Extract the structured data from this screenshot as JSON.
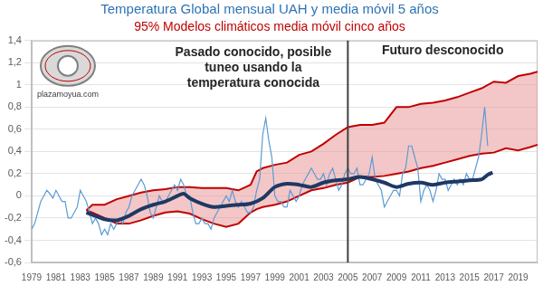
{
  "chart_data": {
    "type": "line",
    "title": "Temperatura Global mensual UAH y media móvil 5 años",
    "subtitle": "95% Modelos climáticos media móvil cinco años",
    "annotations": [
      "Pasado conocido, posible tuneo usando la temperatura conocida",
      "Futuro desconocido"
    ],
    "divider_x": 2005,
    "source": "plazamoyua.com",
    "xlim": [
      1979,
      2020.6
    ],
    "xticks": [
      1979,
      1981,
      1983,
      1985,
      1987,
      1989,
      1991,
      1993,
      1995,
      1997,
      1999,
      2001,
      2003,
      2005,
      2007,
      2009,
      2011,
      2013,
      2015,
      2017,
      2019
    ],
    "ylim": [
      -0.6,
      1.4
    ],
    "yticks": [
      {
        "value": -0.6,
        "label": "-0,6"
      },
      {
        "value": -0.4,
        "label": "-0,4"
      },
      {
        "value": -0.2,
        "label": "-0,2"
      },
      0,
      {
        "value": 0.2,
        "label": "0,2"
      },
      {
        "value": 0.4,
        "label": "0,4"
      },
      {
        "value": 0.6,
        "label": "0,6"
      },
      {
        "value": 0.8,
        "label": "0,8"
      },
      1,
      {
        "value": 1.2,
        "label": "1,2"
      },
      {
        "value": 1.4,
        "label": "1,4"
      }
    ],
    "grid": true,
    "series": [
      {
        "type": "band",
        "color": "#c00000",
        "x": [
          1983.5,
          1984,
          1985,
          1986,
          1987,
          1988,
          1989,
          1990,
          1991,
          1992,
          1993,
          1994,
          1995,
          1996,
          1997,
          1997.5,
          1998,
          1999,
          2000,
          2001,
          2002,
          2003,
          2004,
          2005,
          2006,
          2007,
          2008,
          2009,
          2010,
          2011,
          2012,
          2013,
          2014,
          2015,
          2016,
          2017,
          2018,
          2019,
          2020,
          2020.6
        ],
        "upper": [
          -0.13,
          -0.08,
          -0.08,
          -0.03,
          0.0,
          0.03,
          0.05,
          0.06,
          0.08,
          0.08,
          0.07,
          0.07,
          0.07,
          0.05,
          0.1,
          0.22,
          0.25,
          0.28,
          0.3,
          0.37,
          0.4,
          0.47,
          0.55,
          0.62,
          0.64,
          0.64,
          0.66,
          0.8,
          0.8,
          0.83,
          0.84,
          0.86,
          0.89,
          0.93,
          0.97,
          1.03,
          1.02,
          1.08,
          1.1,
          1.12
        ],
        "lower": [
          -0.13,
          -0.15,
          -0.2,
          -0.25,
          -0.25,
          -0.22,
          -0.18,
          -0.15,
          -0.14,
          -0.16,
          -0.21,
          -0.25,
          -0.28,
          -0.25,
          -0.15,
          -0.12,
          -0.1,
          -0.08,
          -0.05,
          0.0,
          0.05,
          0.07,
          0.1,
          0.12,
          0.17,
          0.17,
          0.18,
          0.2,
          0.22,
          0.25,
          0.27,
          0.3,
          0.33,
          0.36,
          0.38,
          0.39,
          0.43,
          0.41,
          0.44,
          0.46
        ]
      },
      {
        "color": "#5b9bd5",
        "line_style": "thin",
        "x": [
          1979,
          1979.25,
          1979.5,
          1979.75,
          1980,
          1980.25,
          1980.5,
          1980.75,
          1981,
          1981.25,
          1981.5,
          1981.75,
          1982,
          1982.25,
          1982.5,
          1982.75,
          1983,
          1983.25,
          1983.5,
          1983.75,
          1984,
          1984.25,
          1984.5,
          1984.75,
          1985,
          1985.25,
          1985.5,
          1985.75,
          1986,
          1986.25,
          1986.5,
          1986.75,
          1987,
          1987.25,
          1987.5,
          1987.75,
          1988,
          1988.25,
          1988.5,
          1988.75,
          1989,
          1989.25,
          1989.5,
          1989.75,
          1990,
          1990.25,
          1990.5,
          1990.75,
          1991,
          1991.25,
          1991.5,
          1991.75,
          1992,
          1992.25,
          1992.5,
          1992.75,
          1993,
          1993.25,
          1993.5,
          1993.75,
          1994,
          1994.25,
          1994.5,
          1994.75,
          1995,
          1995.25,
          1995.5,
          1995.75,
          1996,
          1996.25,
          1996.5,
          1996.75,
          1997,
          1997.25,
          1997.5,
          1997.75,
          1998,
          1998.25,
          1998.5,
          1998.75,
          1999,
          1999.25,
          1999.5,
          1999.75,
          2000,
          2000.25,
          2000.5,
          2000.75,
          2001,
          2001.25,
          2001.5,
          2001.75,
          2002,
          2002.25,
          2002.5,
          2002.75,
          2003,
          2003.25,
          2003.5,
          2003.75,
          2004,
          2004.25,
          2004.5,
          2004.75,
          2005,
          2005.25,
          2005.5,
          2005.75,
          2006,
          2006.25,
          2006.5,
          2006.75,
          2007,
          2007.25,
          2007.5,
          2007.75,
          2008,
          2008.25,
          2008.5,
          2008.75,
          2009,
          2009.25,
          2009.5,
          2009.75,
          2010,
          2010.25,
          2010.5,
          2010.75,
          2011,
          2011.25,
          2011.5,
          2011.75,
          2012,
          2012.25,
          2012.5,
          2012.75,
          2013,
          2013.25,
          2013.5,
          2013.75,
          2014,
          2014.25,
          2014.5,
          2014.75,
          2015,
          2015.25,
          2015.5,
          2015.75,
          2016,
          2016.25,
          2016.5
        ],
        "values": [
          -0.3,
          -0.25,
          -0.15,
          -0.05,
          0.0,
          0.05,
          0.02,
          -0.02,
          0.05,
          0.0,
          -0.05,
          -0.05,
          -0.2,
          -0.2,
          -0.15,
          -0.1,
          0.05,
          0.0,
          -0.05,
          -0.15,
          -0.25,
          -0.2,
          -0.25,
          -0.35,
          -0.3,
          -0.35,
          -0.25,
          -0.3,
          -0.25,
          -0.2,
          -0.25,
          -0.15,
          -0.1,
          0.0,
          0.05,
          0.1,
          0.15,
          0.1,
          0.0,
          -0.15,
          -0.2,
          -0.1,
          0.0,
          -0.05,
          -0.05,
          0.0,
          0.05,
          0.1,
          0.05,
          0.15,
          0.1,
          0.0,
          0.0,
          -0.15,
          -0.25,
          -0.25,
          -0.2,
          -0.25,
          -0.25,
          -0.3,
          -0.2,
          -0.15,
          -0.1,
          -0.05,
          0.0,
          -0.05,
          0.05,
          -0.05,
          -0.1,
          -0.05,
          -0.1,
          -0.15,
          -0.15,
          -0.1,
          0.05,
          0.15,
          0.55,
          0.7,
          0.5,
          0.35,
          0.0,
          -0.05,
          -0.05,
          -0.1,
          -0.1,
          0.05,
          0.0,
          -0.05,
          0.0,
          0.1,
          0.15,
          0.2,
          0.25,
          0.2,
          0.15,
          0.15,
          0.2,
          0.1,
          0.2,
          0.25,
          0.15,
          0.05,
          0.1,
          0.2,
          0.25,
          0.2,
          0.2,
          0.25,
          0.1,
          0.1,
          0.15,
          0.2,
          0.35,
          0.15,
          0.1,
          0.05,
          -0.1,
          -0.05,
          0.0,
          0.05,
          0.05,
          0.0,
          0.2,
          0.25,
          0.45,
          0.45,
          0.35,
          0.25,
          -0.05,
          0.05,
          0.1,
          0.05,
          -0.05,
          0.05,
          0.2,
          0.15,
          0.15,
          0.05,
          0.1,
          0.15,
          0.1,
          0.15,
          0.1,
          0.2,
          0.15,
          0.15,
          0.25,
          0.35,
          0.55,
          0.8,
          0.45
        ]
      },
      {
        "color": "#1f3864",
        "line_style": "thick",
        "x": [
          1983.5,
          1984,
          1985,
          1986,
          1987,
          1988,
          1989,
          1990,
          1991,
          1991.5,
          1992,
          1993,
          1994,
          1995,
          1996,
          1997,
          1998,
          1999,
          2000,
          2001,
          2002,
          2003,
          2004,
          2005,
          2006,
          2007,
          2008,
          2009,
          2010,
          2011,
          2012,
          2013,
          2014,
          2015,
          2016,
          2016.5,
          2016.9
        ],
        "values": [
          -0.15,
          -0.17,
          -0.21,
          -0.22,
          -0.18,
          -0.12,
          -0.08,
          -0.05,
          0.0,
          0.02,
          -0.02,
          -0.07,
          -0.1,
          -0.09,
          -0.08,
          -0.07,
          -0.02,
          0.08,
          0.11,
          0.1,
          0.08,
          0.12,
          0.14,
          0.15,
          0.17,
          0.15,
          0.12,
          0.08,
          0.11,
          0.12,
          0.1,
          0.12,
          0.13,
          0.14,
          0.15,
          0.19,
          0.21
        ]
      }
    ]
  }
}
